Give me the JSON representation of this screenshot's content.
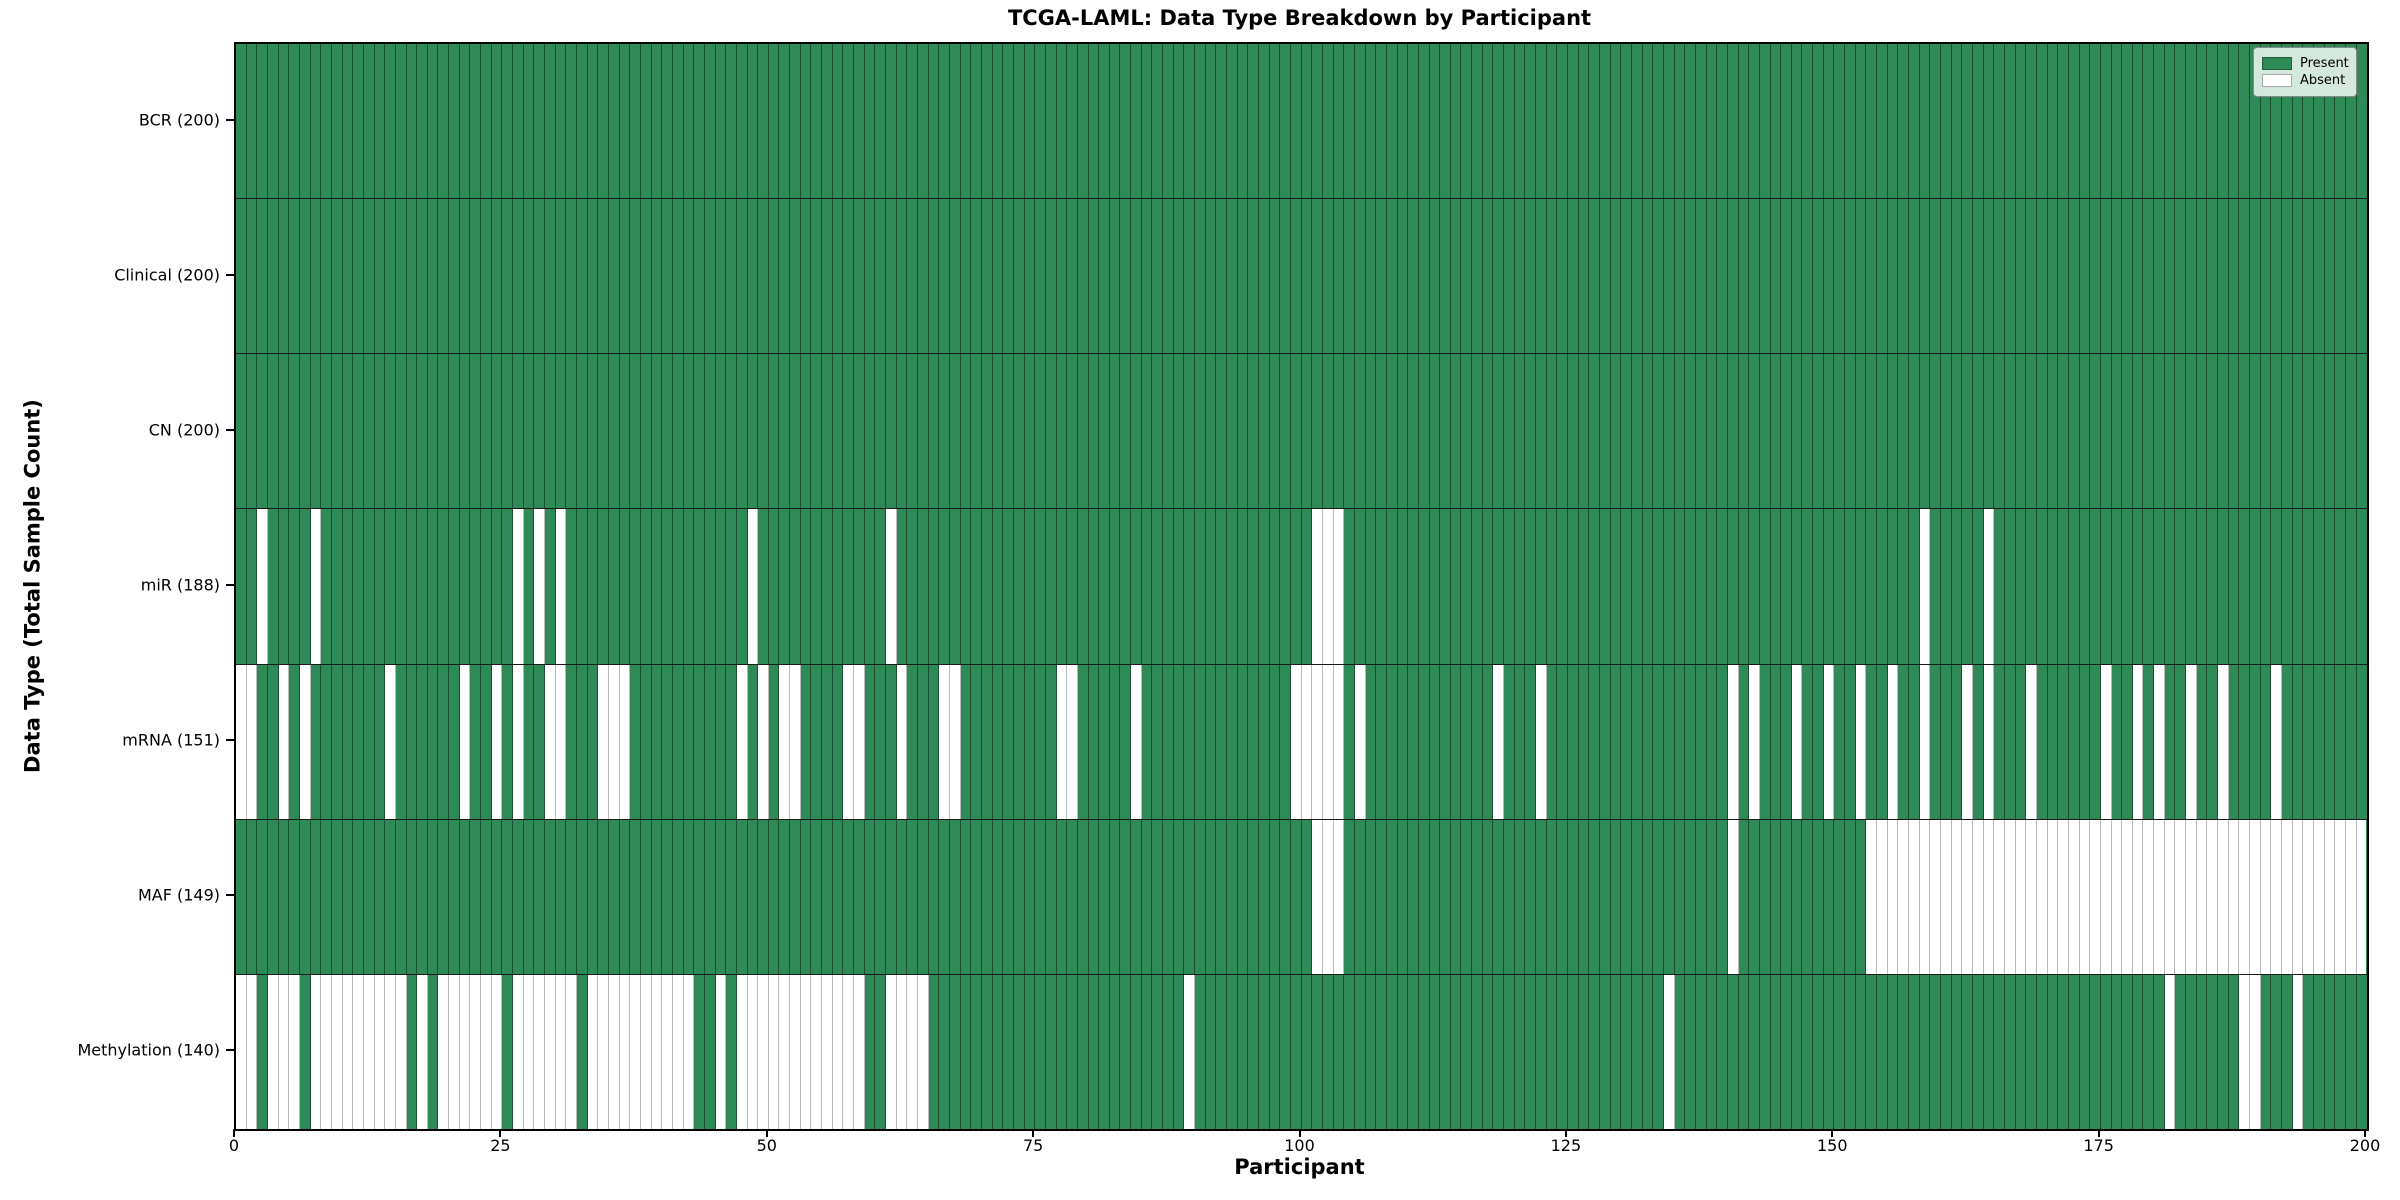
{
  "figure": {
    "legend": {
      "present_label": "Present",
      "absent_label": "Absent"
    },
    "colors": {
      "present": "#2e8b57",
      "absent": "#ffffff",
      "cell_edge_present": "#1f5e3b",
      "cell_edge_absent": "#b9b9b9",
      "axes_border": "#000000",
      "legend_background": "#d5e8dd"
    }
  },
  "chart_data": {
    "type": "heatmap",
    "title": "TCGA-LAML: Data Type Breakdown by Participant",
    "xlabel": "Participant",
    "ylabel": "Data Type (Total Sample Count)",
    "n_participants": 200,
    "x_min": 0,
    "x_max": 200,
    "x_ticks": [
      0,
      25,
      50,
      75,
      100,
      125,
      150,
      175,
      200
    ],
    "grid": false,
    "legend_position": "upper right",
    "legend_entries": [
      "Present",
      "Absent"
    ],
    "value_encoding": {
      "present": 1,
      "absent": 0
    },
    "rows": [
      {
        "key": "bcr",
        "label": "BCR (200)",
        "present_count": 200,
        "absent": []
      },
      {
        "key": "clinical",
        "label": "Clinical (200)",
        "present_count": 200,
        "absent": []
      },
      {
        "key": "cn",
        "label": "CN (200)",
        "present_count": 200,
        "absent": []
      },
      {
        "key": "mir",
        "label": "miR (188)",
        "present_count": 188,
        "absent": [
          2,
          7,
          26,
          28,
          30,
          48,
          61,
          101,
          102,
          103,
          158,
          164
        ]
      },
      {
        "key": "mrna",
        "label": "mRNA (151)",
        "present_count": 151,
        "absent": [
          0,
          1,
          4,
          6,
          14,
          21,
          24,
          26,
          29,
          30,
          34,
          35,
          36,
          47,
          49,
          51,
          52,
          57,
          58,
          62,
          66,
          67,
          77,
          78,
          84,
          99,
          100,
          101,
          102,
          103,
          105,
          118,
          122,
          140,
          142,
          146,
          149,
          152,
          155,
          158,
          162,
          164,
          168,
          175,
          178,
          180,
          183,
          186,
          191
        ]
      },
      {
        "key": "maf",
        "label": "MAF (149)",
        "present_count": 149,
        "absent": [
          101,
          102,
          103,
          140,
          153,
          154,
          155,
          156,
          157,
          158,
          159,
          160,
          161,
          162,
          163,
          164,
          165,
          166,
          167,
          168,
          169,
          170,
          171,
          172,
          173,
          174,
          175,
          176,
          177,
          178,
          179,
          180,
          181,
          182,
          183,
          184,
          185,
          186,
          187,
          188,
          189,
          190,
          191,
          192,
          193,
          194,
          195,
          196,
          197,
          198,
          199
        ]
      },
      {
        "key": "methylation",
        "label": "Methylation (140)",
        "present_count": 140,
        "absent": [
          0,
          1,
          3,
          4,
          5,
          7,
          8,
          9,
          10,
          11,
          12,
          13,
          14,
          15,
          17,
          19,
          20,
          21,
          22,
          23,
          24,
          26,
          27,
          28,
          29,
          30,
          31,
          33,
          34,
          35,
          36,
          37,
          38,
          39,
          40,
          41,
          42,
          45,
          47,
          48,
          49,
          50,
          51,
          52,
          53,
          54,
          55,
          56,
          57,
          58,
          61,
          62,
          63,
          64,
          89,
          134,
          181,
          188,
          189,
          193
        ]
      }
    ]
  }
}
